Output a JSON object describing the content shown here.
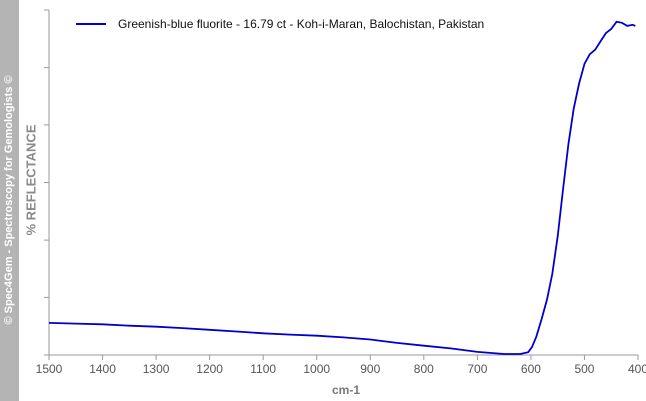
{
  "watermark": "© Spec4Gem - Spectroscopy for Gemologists ©",
  "colors": {
    "series": "#0000cc",
    "axis": "#9a9a9a",
    "strip": "#b4b4b4"
  },
  "chart_data": {
    "type": "line",
    "title": "",
    "xlabel": "cm-1",
    "ylabel": "% REFLECTANCE",
    "xlim": [
      1500,
      400
    ],
    "x_reversed": true,
    "ylim": [
      0,
      100
    ],
    "y_ticks": [
      0,
      16.7,
      33.3,
      50,
      66.7,
      83.3,
      100
    ],
    "y_tick_labels_shown": false,
    "grid": false,
    "legend_position": "top-left",
    "x_ticks": [
      1500,
      1400,
      1300,
      1200,
      1100,
      1000,
      900,
      800,
      700,
      600,
      500,
      400
    ],
    "series": [
      {
        "name": "Greenish-blue fluorite - 16.79 ct - Koh-i-Maran, Balochistan, Pakistan",
        "x": [
          1500,
          1450,
          1400,
          1350,
          1300,
          1250,
          1200,
          1150,
          1100,
          1050,
          1000,
          950,
          900,
          850,
          800,
          750,
          700,
          650,
          620,
          605,
          598,
          590,
          580,
          570,
          560,
          550,
          540,
          530,
          520,
          510,
          500,
          490,
          480,
          470,
          460,
          450,
          440,
          430,
          420,
          410,
          405
        ],
        "y": [
          9.3,
          9.1,
          8.9,
          8.5,
          8.2,
          7.8,
          7.3,
          6.8,
          6.3,
          5.9,
          5.6,
          5.1,
          4.5,
          3.5,
          2.7,
          1.9,
          0.9,
          0.3,
          0.3,
          0.8,
          2.3,
          5.3,
          10.4,
          16.1,
          23.5,
          34.4,
          47.9,
          61.1,
          71.4,
          78.7,
          84.4,
          87.2,
          88.5,
          90.9,
          93.3,
          94.5,
          96.6,
          96.3,
          95.4,
          95.7,
          95.4
        ]
      }
    ]
  }
}
